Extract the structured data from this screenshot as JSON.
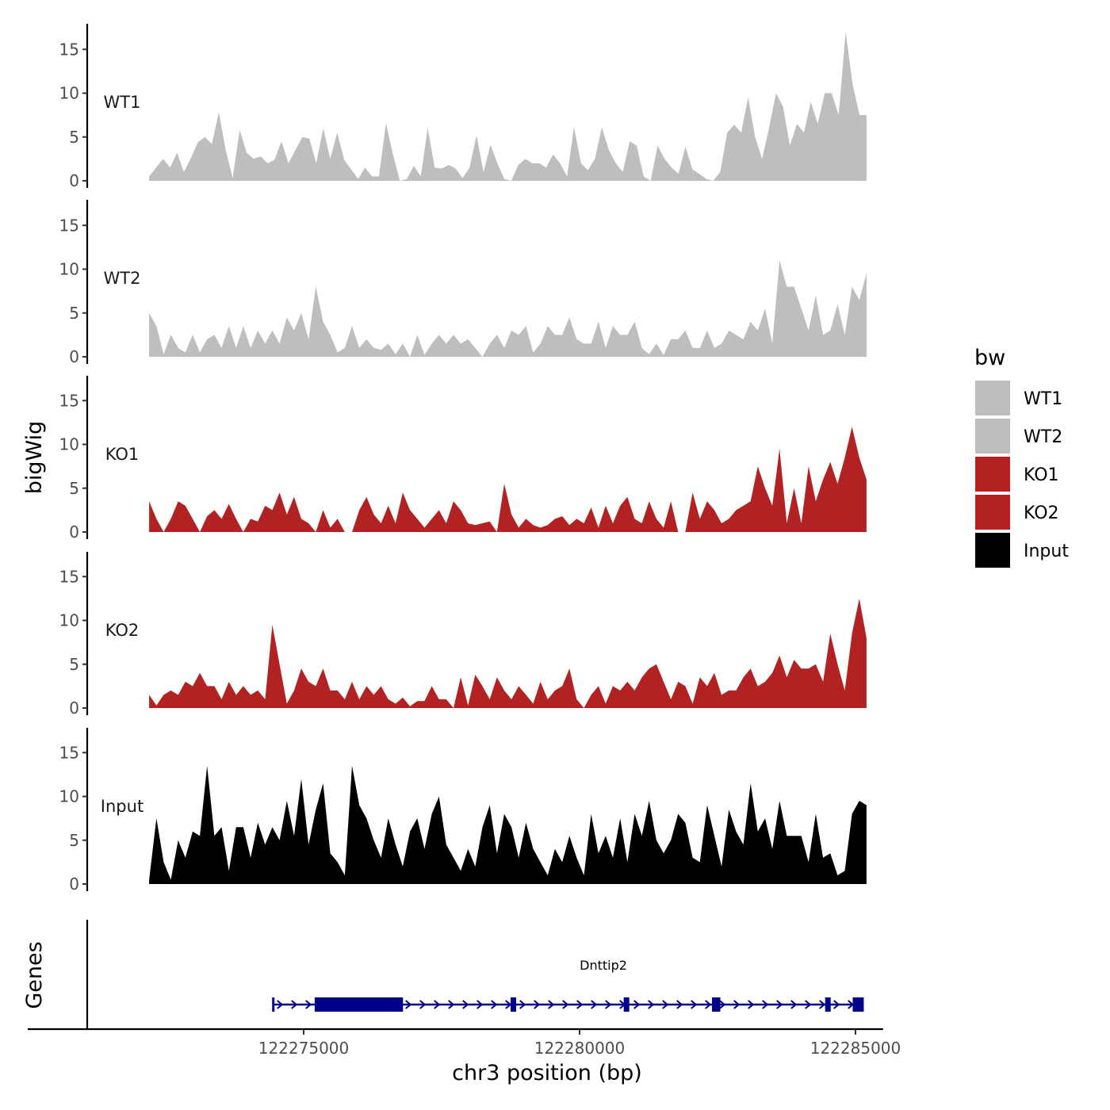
{
  "chart_data": {
    "type": "area",
    "ylabel": "bigWig",
    "xlabel": "chr3 position (bp)",
    "ylim": [
      0,
      18
    ],
    "yticks": [
      0,
      5,
      10,
      15
    ],
    "xlim": [
      122270000,
      122285500
    ],
    "xticks": [
      122275000,
      122280000,
      122285000
    ],
    "xtick_labels": [
      "122275000",
      "122280000",
      "122285000"
    ],
    "series_range": [
      122272200,
      122285200
    ],
    "legend": {
      "title": "bw",
      "position": "right",
      "entries": [
        {
          "label": "WT1",
          "color": "#bebebe"
        },
        {
          "label": "WT2",
          "color": "#bebebe"
        },
        {
          "label": "KO1",
          "color": "#b22222"
        },
        {
          "label": "KO2",
          "color": "#b22222"
        },
        {
          "label": "Input",
          "color": "#000000"
        }
      ]
    },
    "tracks": [
      {
        "name": "WT1",
        "color": "#bebebe",
        "values": [
          0.5,
          1.5,
          2.5,
          1.5,
          3.2,
          1.0,
          2.6,
          4.4,
          5.0,
          4.2,
          7.8,
          3.5,
          0.3,
          5.8,
          3.2,
          2.5,
          2.8,
          2.0,
          2.4,
          4.5,
          2.0,
          3.5,
          5.0,
          4.8,
          2.0,
          6.0,
          2.5,
          5.5,
          2.4,
          1.3,
          0.2,
          1.5,
          0.5,
          0.5,
          6.6,
          3.0,
          0.0,
          0.2,
          1.7,
          0.5,
          6.0,
          1.5,
          1.4,
          1.8,
          1.4,
          0.3,
          1.5,
          5.2,
          1.0,
          4.1,
          2.0,
          0.2,
          0.0,
          1.8,
          2.5,
          2.0,
          2.0,
          1.5,
          3.0,
          2.0,
          0.5,
          6.1,
          2.0,
          1.2,
          2.5,
          6.1,
          3.5,
          2.0,
          1.0,
          4.5,
          4.0,
          0.5,
          0.0,
          4.0,
          2.5,
          1.5,
          0.8,
          3.9,
          1.3,
          0.8,
          0.2,
          0.0,
          1.0,
          5.5,
          6.4,
          5.5,
          9.5,
          5.0,
          2.5,
          6.0,
          10.0,
          8.5,
          4.0,
          6.5,
          5.5,
          9.0,
          6.5,
          10.0,
          10.0,
          7.5,
          17.0,
          11.0,
          7.5,
          7.5
        ]
      },
      {
        "name": "WT2",
        "color": "#bebebe",
        "values": [
          5.0,
          3.5,
          0.3,
          2.5,
          1.0,
          0.5,
          2.5,
          0.5,
          2.0,
          2.5,
          1.0,
          3.5,
          1.0,
          3.5,
          1.0,
          3.0,
          1.5,
          3.0,
          1.5,
          4.5,
          3.0,
          5.0,
          2.0,
          8.0,
          4.0,
          2.5,
          0.5,
          1.0,
          3.5,
          1.0,
          2.0,
          1.0,
          0.8,
          1.5,
          0.3,
          1.5,
          0.0,
          2.5,
          0.2,
          1.5,
          2.5,
          1.5,
          2.5,
          1.5,
          2.0,
          1.0,
          0.0,
          1.5,
          2.5,
          1.0,
          3.0,
          2.5,
          3.5,
          0.5,
          1.5,
          3.5,
          2.5,
          2.5,
          4.5,
          2.0,
          1.5,
          1.5,
          4.0,
          1.0,
          3.5,
          2.5,
          2.5,
          4.0,
          1.0,
          0.3,
          1.5,
          0.2,
          2.0,
          2.0,
          3.0,
          1.0,
          1.0,
          3.0,
          1.0,
          1.5,
          3.0,
          2.5,
          2.0,
          4.0,
          3.0,
          5.5,
          1.5,
          11.0,
          8.0,
          8.0,
          5.5,
          3.0,
          7.0,
          2.5,
          3.0,
          6.0,
          2.5,
          8.0,
          6.5,
          9.5
        ]
      },
      {
        "name": "KO1",
        "color": "#b22222",
        "values": [
          3.5,
          1.5,
          0.0,
          1.5,
          3.5,
          3.0,
          1.5,
          0.0,
          1.8,
          2.5,
          1.5,
          3.2,
          1.5,
          0.0,
          1.5,
          1.2,
          3.0,
          2.5,
          4.5,
          2.0,
          4.0,
          1.5,
          1.0,
          0.0,
          2.5,
          0.5,
          1.5,
          0.0,
          0.0,
          2.5,
          4.0,
          2.0,
          1.0,
          3.0,
          1.0,
          4.5,
          2.5,
          1.5,
          0.5,
          1.5,
          2.5,
          1.0,
          3.5,
          2.5,
          1.0,
          0.8,
          1.0,
          1.2,
          0.0,
          5.5,
          2.0,
          0.5,
          1.5,
          0.8,
          0.5,
          0.8,
          1.5,
          1.8,
          0.8,
          1.5,
          1.0,
          2.8,
          0.5,
          3.0,
          1.0,
          3.0,
          4.0,
          1.5,
          1.0,
          3.5,
          1.5,
          0.5,
          3.5,
          0.0,
          0.0,
          4.5,
          1.5,
          3.5,
          2.5,
          1.0,
          1.5,
          2.5,
          3.0,
          3.5,
          7.5,
          5.0,
          3.0,
          9.5,
          1.0,
          5.0,
          1.0,
          7.5,
          3.5,
          6.0,
          8.0,
          5.5,
          8.5,
          12.0,
          8.5,
          6.0
        ]
      },
      {
        "name": "KO2",
        "color": "#b22222",
        "values": [
          1.5,
          0.3,
          1.5,
          2.0,
          1.5,
          3.0,
          2.5,
          4.0,
          2.5,
          2.5,
          1.0,
          3.0,
          1.5,
          2.5,
          1.5,
          2.0,
          1.0,
          9.5,
          5.0,
          0.5,
          2.0,
          4.5,
          3.0,
          2.5,
          4.5,
          2.0,
          2.0,
          1.0,
          3.0,
          1.0,
          2.5,
          1.5,
          2.5,
          1.0,
          0.5,
          1.2,
          0.2,
          0.8,
          0.8,
          2.5,
          1.0,
          1.0,
          0.0,
          3.5,
          0.3,
          3.8,
          2.5,
          1.0,
          3.5,
          2.0,
          1.0,
          2.5,
          1.5,
          0.5,
          3.0,
          1.0,
          2.0,
          2.5,
          4.5,
          1.0,
          0.0,
          1.5,
          2.5,
          0.5,
          2.5,
          2.0,
          3.0,
          2.0,
          3.5,
          4.5,
          5.0,
          3.0,
          1.0,
          3.0,
          2.5,
          0.5,
          3.5,
          2.5,
          4.0,
          1.5,
          2.0,
          2.0,
          3.5,
          4.5,
          2.5,
          3.0,
          4.0,
          6.0,
          3.5,
          5.5,
          4.5,
          4.5,
          5.0,
          3.0,
          8.5,
          5.0,
          2.0,
          8.5,
          12.5,
          8.0
        ]
      },
      {
        "name": "Input",
        "color": "#000000",
        "values": [
          0.5,
          7.5,
          2.5,
          0.5,
          5.0,
          3.0,
          6.0,
          5.5,
          13.5,
          5.5,
          6.5,
          1.5,
          6.5,
          6.5,
          3.0,
          7.0,
          4.5,
          6.5,
          5.0,
          9.5,
          5.5,
          12.0,
          4.5,
          8.5,
          11.5,
          3.5,
          2.5,
          1.0,
          13.5,
          9.0,
          7.5,
          5.0,
          3.0,
          7.5,
          4.5,
          2.0,
          6.0,
          7.5,
          4.0,
          8.0,
          10.0,
          4.5,
          3.0,
          1.5,
          4.0,
          2.0,
          6.5,
          9.0,
          3.5,
          8.0,
          6.5,
          3.0,
          7.0,
          4.0,
          2.5,
          1.0,
          4.0,
          2.5,
          5.5,
          3.0,
          1.0,
          8.0,
          3.5,
          5.5,
          3.0,
          7.5,
          2.5,
          8.0,
          5.5,
          9.5,
          5.0,
          3.5,
          5.0,
          8.0,
          7.0,
          3.0,
          2.5,
          9.0,
          5.5,
          2.0,
          8.5,
          6.0,
          4.5,
          11.5,
          6.0,
          7.5,
          4.0,
          9.5,
          5.5,
          5.5,
          5.5,
          2.5,
          8.0,
          3.0,
          3.5,
          1.0,
          1.5,
          8.0,
          9.5,
          9.0
        ]
      }
    ],
    "genes_panel": {
      "ylabel": "Genes",
      "gene": {
        "name": "Dnttip2",
        "start": 122274450,
        "end": 122285150,
        "strand": "+",
        "exons": [
          [
            122275200,
            122276800
          ],
          [
            122278750,
            122278850
          ],
          [
            122280800,
            122280900
          ],
          [
            122282400,
            122282550
          ],
          [
            122284450,
            122284550
          ],
          [
            122284950,
            122285150
          ]
        ]
      }
    }
  }
}
